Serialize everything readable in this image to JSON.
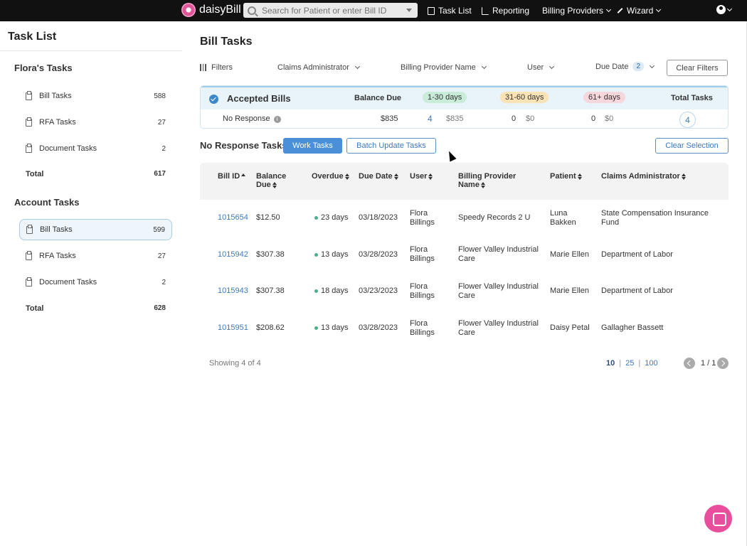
{
  "nav": {
    "brand": "daisyBill",
    "search_placeholder": "Search for Patient or enter Bill ID",
    "task_list": "Task List",
    "reporting": "Reporting",
    "billing_providers": "Billing Providers",
    "wizard": "Wizard"
  },
  "sidebar": {
    "title": "Task List",
    "floras_title": "Flora's Tasks",
    "floras": [
      {
        "label": "Bill Tasks",
        "count": "588"
      },
      {
        "label": "RFA Tasks",
        "count": "27"
      },
      {
        "label": "Document Tasks",
        "count": "2"
      }
    ],
    "floras_total_label": "Total",
    "floras_total": "617",
    "account_title": "Account Tasks",
    "account": [
      {
        "label": "Bill Tasks",
        "count": "599"
      },
      {
        "label": "RFA Tasks",
        "count": "27"
      },
      {
        "label": "Document Tasks",
        "count": "2"
      }
    ],
    "account_total_label": "Total",
    "account_total": "628"
  },
  "main": {
    "title": "Bill Tasks",
    "filters": {
      "filters": "Filters",
      "claims_admin": "Claims Administrator",
      "billing_provider": "Billing Provider Name",
      "user": "User",
      "due_date": "Due Date",
      "due_date_count": "2",
      "clear_filters": "Clear Filters"
    },
    "summary": {
      "title": "Accepted Bills",
      "balance_due": "Balance Due",
      "b1": "1-30 days",
      "b2": "31-60 days",
      "b3": "61+ days",
      "total_tasks": "Total Tasks",
      "row_label": "No Response",
      "row_balance": "$835",
      "b1_count": "4",
      "b1_amt": "$835",
      "b2_count": "0",
      "b2_amt": "$0",
      "b3_count": "0",
      "b3_amt": "$0",
      "total": "4",
      "colors": {
        "b1": "#c9ecd9",
        "b2": "#fbe3b5",
        "b3": "#f8d7dc"
      }
    },
    "tasks_title": "No Response Tasks",
    "work_tasks": "Work Tasks",
    "batch_update": "Batch Update Tasks",
    "clear_selection": "Clear Selection",
    "table": {
      "headers": {
        "bill_id": "Bill ID",
        "balance_due_1": "Balance",
        "balance_due_2": "Due",
        "overdue": "Overdue",
        "due_date": "Due Date",
        "user": "User",
        "billing_provider_1": "Billing Provider",
        "billing_provider_2": "Name",
        "patient": "Patient",
        "claims_admin": "Claims Administrator"
      },
      "rows": [
        {
          "bill_id": "1015654",
          "balance": "$12.50",
          "overdue": "23 days",
          "due": "03/18/2023",
          "user1": "Flora",
          "user2": "Billings",
          "bp1": "Speedy Records 2 U",
          "bp2": "",
          "pat1": "Luna",
          "pat2": "Bakken",
          "ca1": "State Compensation Insurance",
          "ca2": "Fund"
        },
        {
          "bill_id": "1015942",
          "balance": "$307.38",
          "overdue": "13 days",
          "due": "03/28/2023",
          "user1": "Flora",
          "user2": "Billings",
          "bp1": "Flower Valley Industrial",
          "bp2": "Care",
          "pat1": "Marie Ellen",
          "pat2": "",
          "ca1": "Department of Labor",
          "ca2": ""
        },
        {
          "bill_id": "1015943",
          "balance": "$307.38",
          "overdue": "18 days",
          "due": "03/23/2023",
          "user1": "Flora",
          "user2": "Billings",
          "bp1": "Flower Valley Industrial",
          "bp2": "Care",
          "pat1": "Marie Ellen",
          "pat2": "",
          "ca1": "Department of Labor",
          "ca2": ""
        },
        {
          "bill_id": "1015951",
          "balance": "$208.62",
          "overdue": "13 days",
          "due": "03/28/2023",
          "user1": "Flora",
          "user2": "Billings",
          "bp1": "Flower Valley Industrial",
          "bp2": "Care",
          "pat1": "Daisy Petal",
          "pat2": "",
          "ca1": "Gallagher Bassett",
          "ca2": ""
        }
      ]
    },
    "footer": {
      "showing": "Showing 4 of 4",
      "size_10": "10",
      "size_25": "25",
      "size_100": "100",
      "pages": "1 / 1"
    }
  }
}
